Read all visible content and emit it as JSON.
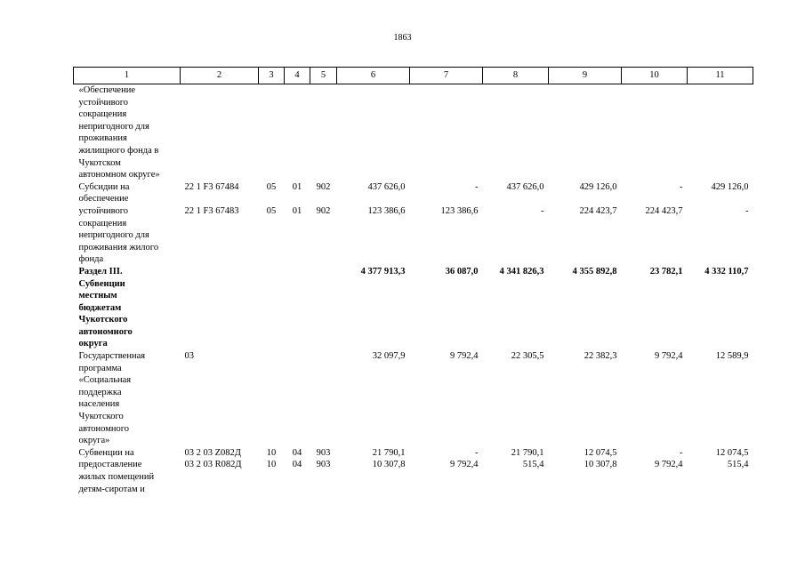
{
  "page_number": "1863",
  "header": [
    "1",
    "2",
    "3",
    "4",
    "5",
    "6",
    "7",
    "8",
    "9",
    "10",
    "11"
  ],
  "rows": [
    {
      "bold": false,
      "name": [
        "«Обеспечение",
        "устойчивого",
        "сокращения",
        "непригодного для",
        "проживания",
        "жилищного фонда в",
        "Чукотском",
        "автономном округе»"
      ],
      "code": "",
      "c3": "",
      "c4": "",
      "c5": "",
      "v6": "",
      "v7": "",
      "v8": "",
      "v9": "",
      "v10": "",
      "v11": ""
    },
    {
      "bold": false,
      "name": [
        "Субсидии на",
        "обеспечение"
      ],
      "code": "22 1 F3 67484",
      "c3": "05",
      "c4": "01",
      "c5": "902",
      "v6": "437 626,0",
      "v7": "-",
      "v8": "437 626,0",
      "v9": "429 126,0",
      "v10": "-",
      "v11": "429 126,0"
    },
    {
      "bold": false,
      "name": [
        "устойчивого",
        "сокращения",
        "непригодного для",
        "проживания жилого",
        "фонда"
      ],
      "code": "22 1 F3 67483",
      "c3": "05",
      "c4": "01",
      "c5": "902",
      "v6": "123 386,6",
      "v7": "123 386,6",
      "v8": "-",
      "v9": "224 423,7",
      "v10": "224 423,7",
      "v11": "-"
    },
    {
      "bold": true,
      "name": [
        "Раздел III.",
        "Субвенции",
        "местным",
        "бюджетам",
        "Чукотского",
        "автономного",
        "округа"
      ],
      "code": "",
      "c3": "",
      "c4": "",
      "c5": "",
      "v6": "4 377 913,3",
      "v7": "36 087,0",
      "v8": "4 341 826,3",
      "v9": "4 355 892,8",
      "v10": "23 782,1",
      "v11": "4 332 110,7"
    },
    {
      "bold": false,
      "name": [
        "Государственная",
        "программа",
        "«Социальная",
        "поддержка",
        "населения",
        "Чукотского",
        "автономного",
        "округа»"
      ],
      "code": "03",
      "c3": "",
      "c4": "",
      "c5": "",
      "v6": "32 097,9",
      "v7": "9 792,4",
      "v8": "22 305,5",
      "v9": "22 382,3",
      "v10": "9 792,4",
      "v11": "12 589,9"
    },
    {
      "bold": false,
      "name": [
        "Субвенции на"
      ],
      "code": "03 2 03 Z082Д",
      "c3": "10",
      "c4": "04",
      "c5": "903",
      "v6": "21 790,1",
      "v7": "-",
      "v8": "21 790,1",
      "v9": "12 074,5",
      "v10": "-",
      "v11": "12 074,5"
    },
    {
      "bold": false,
      "name": [
        "предоставление",
        "жилых помещений",
        "детям-сиротам и"
      ],
      "code": "03 2 03 R082Д",
      "c3": "10",
      "c4": "04",
      "c5": "903",
      "v6": "10 307,8",
      "v7": "9 792,4",
      "v8": "515,4",
      "v9": "10 307,8",
      "v10": "9 792,4",
      "v11": "515,4"
    }
  ]
}
